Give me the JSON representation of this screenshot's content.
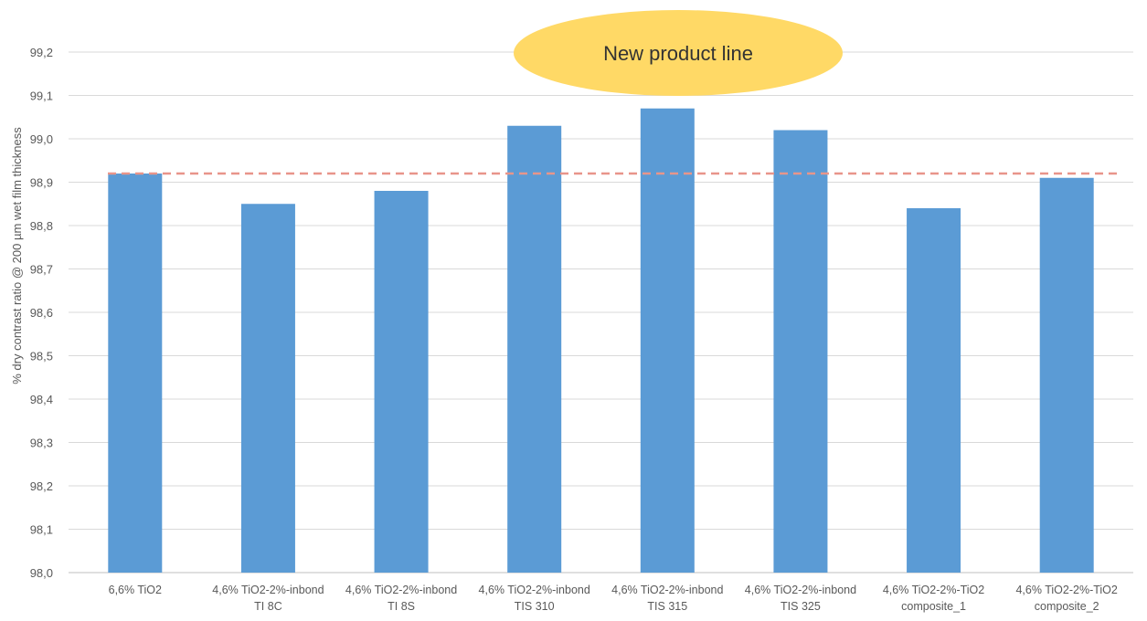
{
  "chart_data": {
    "type": "bar",
    "categories": [
      [
        "6,6% TiO2",
        ""
      ],
      [
        "4,6% TiO2-2%-inbond",
        "TI 8C"
      ],
      [
        "4,6% TiO2-2%-inbond",
        "TI 8S"
      ],
      [
        "4,6% TiO2-2%-inbond",
        "TIS 310"
      ],
      [
        "4,6% TiO2-2%-inbond",
        "TIS 315"
      ],
      [
        "4,6% TiO2-2%-inbond",
        "TIS 325"
      ],
      [
        "4,6% TiO2-2%-TiO2",
        "composite_1"
      ],
      [
        "4,6% TiO2-2%-TiO2",
        "composite_2"
      ]
    ],
    "values": [
      98.92,
      98.85,
      98.88,
      99.03,
      99.07,
      99.02,
      98.84,
      98.91
    ],
    "ylabel": "% dry contrast ratio @ 200 µm wet film thickness",
    "xlabel": "",
    "ylim": [
      98.0,
      99.2
    ],
    "yticks": [
      "98,0",
      "98,1",
      "98,2",
      "98,3",
      "98,4",
      "98,5",
      "98,6",
      "98,7",
      "98,8",
      "98,9",
      "99,0",
      "99,1",
      "99,2"
    ],
    "reference_line": {
      "value": 98.92,
      "style": "dashed",
      "color": "#e8958a"
    },
    "annotation": {
      "text": "New product line",
      "color": "#ffd966"
    },
    "bar_color": "#5b9bd5",
    "grid": true,
    "legend": "none"
  }
}
